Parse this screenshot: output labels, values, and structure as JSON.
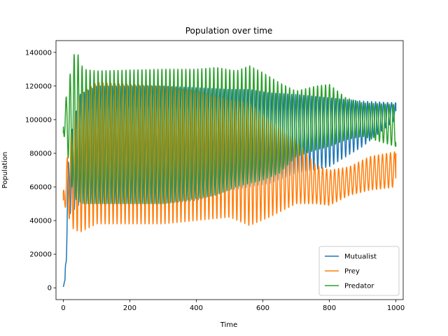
{
  "chart_data": {
    "type": "line",
    "title": "Population over time",
    "xlabel": "Time",
    "ylabel": "Population",
    "xlim": [
      -22,
      1022
    ],
    "ylim": [
      -7000,
      147000
    ],
    "xticks": [
      0,
      200,
      400,
      600,
      800,
      1000
    ],
    "xtick_labels": [
      "0",
      "200",
      "400",
      "600",
      "800",
      "1000"
    ],
    "yticks": [
      0,
      20000,
      40000,
      60000,
      80000,
      100000,
      120000,
      140000
    ],
    "ytick_labels": [
      "0",
      "20000",
      "40000",
      "60000",
      "80000",
      "100000",
      "120000",
      "140000"
    ],
    "grid": false,
    "legend_position": "lower-right",
    "x_range": [
      0,
      1000
    ],
    "series": [
      {
        "name": "Mutualist",
        "color": "#1f77b4",
        "start_value": 500,
        "final_value": 105000,
        "oscillation_period": 12,
        "envelope_keyframes": [
          {
            "x": 0,
            "min": 500,
            "max": 500
          },
          {
            "x": 5,
            "min": 3000,
            "max": 5000
          },
          {
            "x": 10,
            "min": 20000,
            "max": 60000
          },
          {
            "x": 20,
            "min": 44000,
            "max": 88000
          },
          {
            "x": 50,
            "min": 50000,
            "max": 115000
          },
          {
            "x": 100,
            "min": 50000,
            "max": 120000
          },
          {
            "x": 300,
            "min": 50000,
            "max": 120000
          },
          {
            "x": 400,
            "min": 52000,
            "max": 119000
          },
          {
            "x": 500,
            "min": 58000,
            "max": 118000
          },
          {
            "x": 560,
            "min": 60000,
            "max": 118000
          },
          {
            "x": 620,
            "min": 62000,
            "max": 116000
          },
          {
            "x": 700,
            "min": 68000,
            "max": 115000
          },
          {
            "x": 800,
            "min": 72000,
            "max": 113000
          },
          {
            "x": 900,
            "min": 84000,
            "max": 111000
          },
          {
            "x": 1000,
            "min": 100000,
            "max": 110000
          }
        ]
      },
      {
        "name": "Prey",
        "color": "#ff7f0e",
        "start_value": 52000,
        "final_value": 80000,
        "oscillation_period": 12,
        "envelope_keyframes": [
          {
            "x": 0,
            "min": 52000,
            "max": 57000
          },
          {
            "x": 10,
            "min": 45000,
            "max": 75000
          },
          {
            "x": 30,
            "min": 35000,
            "max": 100000
          },
          {
            "x": 50,
            "min": 33000,
            "max": 115000
          },
          {
            "x": 100,
            "min": 38000,
            "max": 122000
          },
          {
            "x": 200,
            "min": 38000,
            "max": 121000
          },
          {
            "x": 300,
            "min": 38000,
            "max": 120000
          },
          {
            "x": 400,
            "min": 40000,
            "max": 117000
          },
          {
            "x": 500,
            "min": 42000,
            "max": 112000
          },
          {
            "x": 560,
            "min": 37000,
            "max": 110000
          },
          {
            "x": 620,
            "min": 42000,
            "max": 100000
          },
          {
            "x": 700,
            "min": 50000,
            "max": 88000
          },
          {
            "x": 760,
            "min": 50000,
            "max": 73000
          },
          {
            "x": 800,
            "min": 49000,
            "max": 70000
          },
          {
            "x": 860,
            "min": 55000,
            "max": 72000
          },
          {
            "x": 920,
            "min": 58000,
            "max": 78000
          },
          {
            "x": 1000,
            "min": 60000,
            "max": 81000
          }
        ]
      },
      {
        "name": "Predator",
        "color": "#2ca02c",
        "start_value": 92000,
        "final_value": 84000,
        "oscillation_period": 12,
        "envelope_keyframes": [
          {
            "x": 0,
            "min": 92000,
            "max": 104000
          },
          {
            "x": 10,
            "min": 84000,
            "max": 115000
          },
          {
            "x": 30,
            "min": 55000,
            "max": 138000
          },
          {
            "x": 40,
            "min": 52000,
            "max": 141000
          },
          {
            "x": 60,
            "min": 50000,
            "max": 130000
          },
          {
            "x": 100,
            "min": 50000,
            "max": 129000
          },
          {
            "x": 300,
            "min": 50000,
            "max": 130000
          },
          {
            "x": 400,
            "min": 53000,
            "max": 130000
          },
          {
            "x": 460,
            "min": 55000,
            "max": 131000
          },
          {
            "x": 520,
            "min": 60000,
            "max": 129000
          },
          {
            "x": 560,
            "min": 62000,
            "max": 132000
          },
          {
            "x": 600,
            "min": 64000,
            "max": 128000
          },
          {
            "x": 650,
            "min": 68000,
            "max": 122000
          },
          {
            "x": 700,
            "min": 78000,
            "max": 117000
          },
          {
            "x": 760,
            "min": 82000,
            "max": 120000
          },
          {
            "x": 800,
            "min": 84000,
            "max": 121000
          },
          {
            "x": 850,
            "min": 88000,
            "max": 113000
          },
          {
            "x": 900,
            "min": 90000,
            "max": 110000
          },
          {
            "x": 1000,
            "min": 84000,
            "max": 109000
          }
        ]
      }
    ]
  }
}
